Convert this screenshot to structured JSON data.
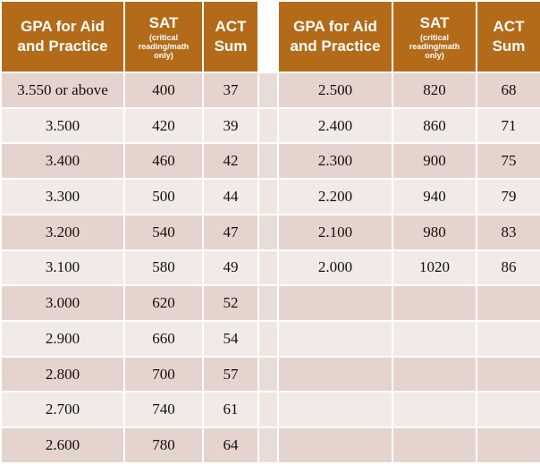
{
  "headers": {
    "left": {
      "gpa": [
        "GPA for Aid",
        "and Practice"
      ],
      "sat": "SAT",
      "sat_sub": [
        "(critical",
        "reading/math",
        "only)"
      ],
      "act": [
        "ACT",
        "Sum"
      ]
    },
    "right": {
      "gpa": [
        "GPA for Aid",
        "and Practice"
      ],
      "sat": "SAT",
      "sat_sub": [
        "(critical",
        "reading/math",
        "only)"
      ],
      "act": [
        "ACT",
        "Sum"
      ]
    }
  },
  "rows": [
    {
      "left": {
        "gpa": "3.550 or above",
        "sat": "400",
        "act": "37"
      },
      "right": {
        "gpa": "2.500",
        "sat": "820",
        "act": "68"
      }
    },
    {
      "left": {
        "gpa": "3.500",
        "sat": "420",
        "act": "39"
      },
      "right": {
        "gpa": "2.400",
        "sat": "860",
        "act": "71"
      }
    },
    {
      "left": {
        "gpa": "3.400",
        "sat": "460",
        "act": "42"
      },
      "right": {
        "gpa": "2.300",
        "sat": "900",
        "act": "75"
      }
    },
    {
      "left": {
        "gpa": "3.300",
        "sat": "500",
        "act": "44"
      },
      "right": {
        "gpa": "2.200",
        "sat": "940",
        "act": "79"
      }
    },
    {
      "left": {
        "gpa": "3.200",
        "sat": "540",
        "act": "47"
      },
      "right": {
        "gpa": "2.100",
        "sat": "980",
        "act": "83"
      }
    },
    {
      "left": {
        "gpa": "3.100",
        "sat": "580",
        "act": "49"
      },
      "right": {
        "gpa": "2.000",
        "sat": "1020",
        "act": "86"
      }
    },
    {
      "left": {
        "gpa": "3.000",
        "sat": "620",
        "act": "52"
      },
      "right": {
        "gpa": "",
        "sat": "",
        "act": ""
      }
    },
    {
      "left": {
        "gpa": "2.900",
        "sat": "660",
        "act": "54"
      },
      "right": {
        "gpa": "",
        "sat": "",
        "act": ""
      }
    },
    {
      "left": {
        "gpa": "2.800",
        "sat": "700",
        "act": "57"
      },
      "right": {
        "gpa": "",
        "sat": "",
        "act": ""
      }
    },
    {
      "left": {
        "gpa": "2.700",
        "sat": "740",
        "act": "61"
      },
      "right": {
        "gpa": "",
        "sat": "",
        "act": ""
      }
    },
    {
      "left": {
        "gpa": "2.600",
        "sat": "780",
        "act": "64"
      },
      "right": {
        "gpa": "",
        "sat": "",
        "act": ""
      }
    }
  ],
  "colors": {
    "header": "#b36b1a",
    "row_dark": "#e5d3cd",
    "row_light": "#f2eae7"
  }
}
